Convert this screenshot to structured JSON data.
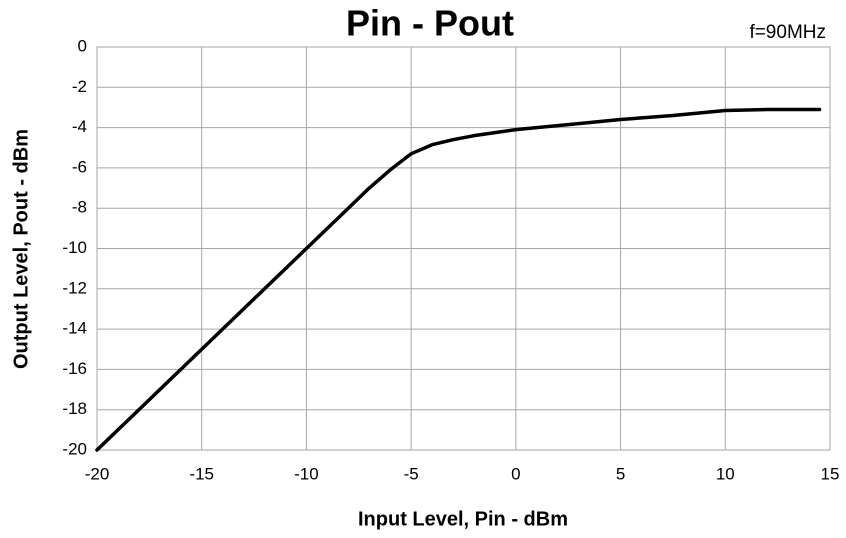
{
  "chart_data": {
    "type": "line",
    "title": "Pin - Pout",
    "annotation": "f=90MHz",
    "xlabel": "Input Level, Pin - dBm",
    "ylabel": "Output Level, Pout - dBm",
    "x": [
      -20,
      -15,
      -10,
      -8,
      -7,
      -6,
      -5,
      -4,
      -3,
      -2,
      -1,
      0,
      2.5,
      5,
      7.5,
      10,
      12,
      14.5
    ],
    "series": [
      {
        "name": "Pout",
        "color": "#000000",
        "values": [
          -20,
          -15,
          -10,
          -8,
          -7,
          -6.1,
          -5.3,
          -4.85,
          -4.6,
          -4.4,
          -4.25,
          -4.1,
          -3.85,
          -3.6,
          -3.4,
          -3.15,
          -3.1,
          -3.1
        ]
      }
    ],
    "xlim": [
      -20,
      15
    ],
    "xticks": [
      -20,
      -15,
      -10,
      -5,
      0,
      5,
      10,
      15
    ],
    "ylim": [
      -20,
      0
    ],
    "yticks": [
      0,
      -2,
      -4,
      -6,
      -8,
      -10,
      -12,
      -14,
      -16,
      -18,
      -20
    ],
    "grid": true
  }
}
